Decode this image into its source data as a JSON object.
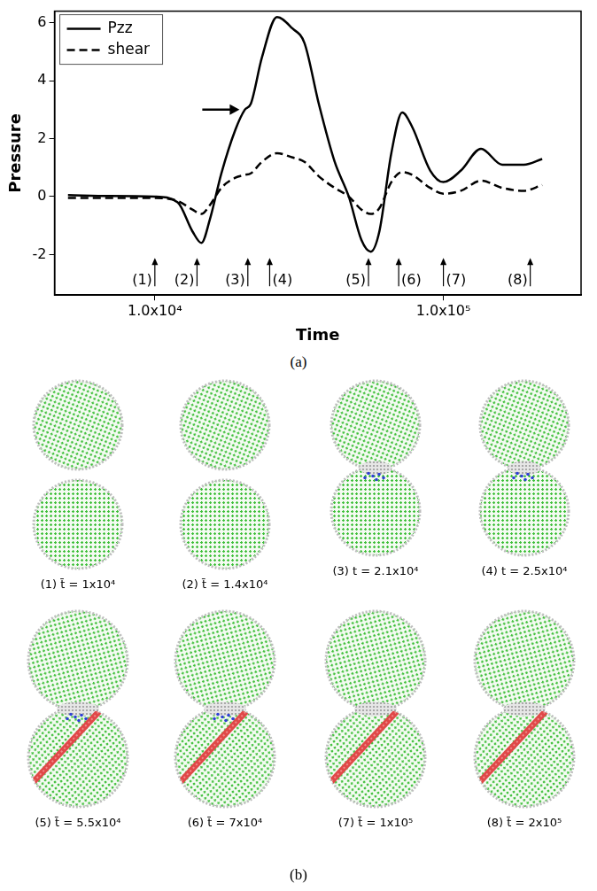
{
  "chart_data": {
    "type": "line",
    "xlabel": "Time",
    "ylabel": "Pressure",
    "log": "x",
    "xlim": [
      4490,
      300000
    ],
    "xticks": [
      {
        "value": 10000,
        "label": "1.0x10⁴"
      },
      {
        "value": 100000,
        "label": "1.0x10⁵"
      }
    ],
    "ylim": [
      -3.4,
      6.4
    ],
    "yticks": [
      -2,
      0,
      2,
      4,
      6
    ],
    "grid": false,
    "legend": "upper left",
    "x": [
      5000,
      7000,
      10000,
      12000,
      13500,
      14500,
      15500,
      17000,
      19000,
      20500,
      21500,
      23500,
      26500,
      30000,
      33000,
      37000,
      42000,
      47000,
      52000,
      56000,
      60000,
      66000,
      72000,
      78000,
      90000,
      100000,
      115000,
      135000,
      160000,
      190000,
      220000
    ],
    "series": [
      {
        "name": "Pzz",
        "color": "#000000",
        "line_style": "solid",
        "values": [
          0.05,
          0.02,
          0,
          -0.2,
          -1.2,
          -1.6,
          -0.8,
          0.8,
          2.3,
          3.0,
          3.2,
          4.8,
          6.2,
          5.8,
          5.3,
          3.2,
          1.2,
          0,
          -1.5,
          -1.9,
          -1.2,
          1.5,
          2.9,
          2.4,
          0.9,
          0.5,
          0.9,
          1.65,
          1.1,
          1.1,
          1.3
        ]
      },
      {
        "name": "shear",
        "color": "#000000",
        "line_style": "dashed",
        "values": [
          -0.05,
          -0.05,
          -0.05,
          -0.15,
          -0.45,
          -0.6,
          -0.3,
          0.3,
          0.65,
          0.75,
          0.8,
          1.2,
          1.5,
          1.35,
          1.2,
          0.7,
          0.3,
          0,
          -0.45,
          -0.6,
          -0.4,
          0.5,
          0.85,
          0.75,
          0.3,
          0.1,
          0.2,
          0.55,
          0.3,
          0.2,
          0.4
        ]
      }
    ],
    "time_markers": [
      {
        "x": 10000,
        "label": "(1)",
        "side": "left"
      },
      {
        "x": 14000,
        "label": "(2)",
        "side": "left"
      },
      {
        "x": 21000,
        "label": "(3)",
        "side": "left"
      },
      {
        "x": 25000,
        "label": "(4)",
        "side": "right"
      },
      {
        "x": 55000,
        "label": "(5)",
        "side": "left"
      },
      {
        "x": 70000,
        "label": "(6)",
        "side": "right"
      },
      {
        "x": 100000,
        "label": "(7)",
        "side": "right"
      },
      {
        "x": 200000,
        "label": "(8)",
        "side": "left"
      }
    ],
    "pointer": {
      "x": 20500,
      "y": 3.0
    },
    "caption": "(a)"
  },
  "snapshots": {
    "caption": "(b)",
    "panels": [
      {
        "caption": "(1) t̄ = 1x10⁴",
        "contact": false,
        "dislocations": false,
        "slip_plane": false
      },
      {
        "caption": "(2) t̄ = 1.4x10⁴",
        "contact": false,
        "dislocations": false,
        "slip_plane": false
      },
      {
        "caption": "(3) t = 2.1x10⁴",
        "contact": true,
        "dislocations": true,
        "slip_plane": false
      },
      {
        "caption": "(4) t = 2.5x10⁴",
        "contact": true,
        "dislocations": true,
        "slip_plane": false
      },
      {
        "caption": "(5) t̄ = 5.5x10⁴",
        "contact": true,
        "dislocations": true,
        "slip_plane": true
      },
      {
        "caption": "(6) t̄ = 7x10⁴",
        "contact": true,
        "dislocations": true,
        "slip_plane": true
      },
      {
        "caption": "(7) t̄ = 1x10⁵",
        "contact": true,
        "dislocations": false,
        "slip_plane": true
      },
      {
        "caption": "(8) t̄ = 2x10⁵",
        "contact": true,
        "dislocations": false,
        "slip_plane": true
      }
    ]
  }
}
